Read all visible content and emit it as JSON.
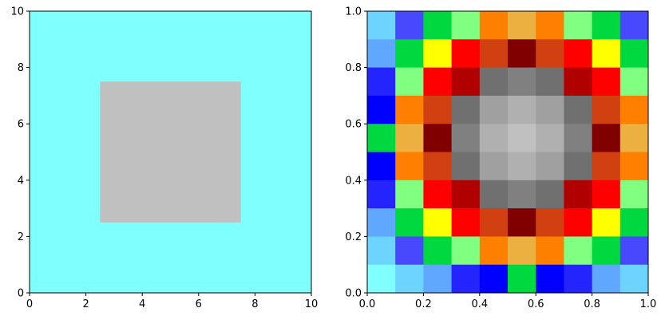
{
  "chart_data": [
    {
      "type": "area",
      "title": "",
      "xlabel": "",
      "ylabel": "",
      "xlim": [
        0,
        10
      ],
      "ylim": [
        0,
        10
      ],
      "grid": false,
      "background_color": "#80ffff",
      "xticks": [
        "0",
        "2",
        "4",
        "6",
        "8",
        "10"
      ],
      "yticks": [
        "0",
        "2",
        "4",
        "6",
        "8",
        "10"
      ],
      "shapes": [
        {
          "kind": "rectangle",
          "x": [
            2.5,
            7.5
          ],
          "y": [
            2.5,
            7.5
          ],
          "color": "#c0c0c0"
        }
      ]
    },
    {
      "type": "heatmap",
      "title": "",
      "xlabel": "",
      "ylabel": "",
      "xlim": [
        0,
        1
      ],
      "ylim": [
        0,
        1
      ],
      "grid": false,
      "xticks": [
        "0.0",
        "0.2",
        "0.4",
        "0.6",
        "0.8",
        "1.0"
      ],
      "yticks": [
        "0.0",
        "0.2",
        "0.4",
        "0.6",
        "0.8",
        "1.0"
      ],
      "rows_top_to_bottom": [
        [
          "#6cd4ff",
          "#4848ff",
          "#00d840",
          "#80ff80",
          "#ff8000",
          "#ebb040",
          "#ff8000",
          "#80ff80",
          "#00d840",
          "#4848ff"
        ],
        [
          "#60a8ff",
          "#00d840",
          "#ffff00",
          "#ff0000",
          "#d04010",
          "#800000",
          "#d04010",
          "#ff0000",
          "#ffff00",
          "#00d840"
        ],
        [
          "#2424ff",
          "#80ff80",
          "#ff0000",
          "#b00000",
          "#707070",
          "#808080",
          "#707070",
          "#b00000",
          "#ff0000",
          "#80ff80"
        ],
        [
          "#0000ff",
          "#ff8000",
          "#d04010",
          "#707070",
          "#a0a0a0",
          "#b0b0b0",
          "#a0a0a0",
          "#707070",
          "#d04010",
          "#ff8000"
        ],
        [
          "#00d840",
          "#ebb040",
          "#800000",
          "#808080",
          "#b0b0b0",
          "#c0c0c0",
          "#b0b0b0",
          "#808080",
          "#800000",
          "#ebb040"
        ],
        [
          "#0000ff",
          "#ff8000",
          "#d04010",
          "#707070",
          "#a0a0a0",
          "#b0b0b0",
          "#a0a0a0",
          "#707070",
          "#d04010",
          "#ff8000"
        ],
        [
          "#2424ff",
          "#80ff80",
          "#ff0000",
          "#b00000",
          "#707070",
          "#808080",
          "#707070",
          "#b00000",
          "#ff0000",
          "#80ff80"
        ],
        [
          "#60a8ff",
          "#00d840",
          "#ffff00",
          "#ff0000",
          "#d04010",
          "#800000",
          "#d04010",
          "#ff0000",
          "#ffff00",
          "#00d840"
        ],
        [
          "#6cd4ff",
          "#4848ff",
          "#00d840",
          "#80ff80",
          "#ff8000",
          "#ebb040",
          "#ff8000",
          "#80ff80",
          "#00d840",
          "#4848ff"
        ],
        [
          "#80ffff",
          "#6cd4ff",
          "#60a8ff",
          "#2424ff",
          "#0000ff",
          "#00d840",
          "#0000ff",
          "#2424ff",
          "#60a8ff",
          "#6cd4ff"
        ]
      ]
    }
  ]
}
